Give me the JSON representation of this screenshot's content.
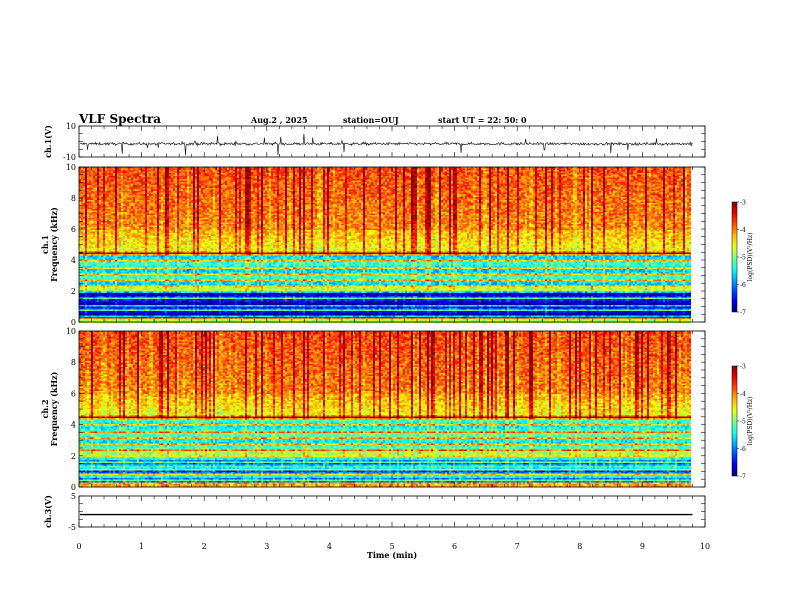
{
  "header": {
    "title": "VLF Spectra",
    "date": "Aug.2 , 2025",
    "station": "station=OUJ",
    "start": "start UT = 22: 50: 0"
  },
  "chart_data": [
    {
      "type": "line",
      "ylabel": "ch.1(V)",
      "ylim": [
        -10,
        10
      ],
      "yticks": [
        "10",
        "-10"
      ],
      "xlim": [
        0,
        10
      ],
      "series": [
        {
          "description": "noisy waveform centered near -1.5 V with sporadic spikes",
          "baseline": -1.5,
          "amplitude": 1.5,
          "spike_max": 8,
          "end_x": 9.8
        }
      ]
    },
    {
      "type": "heatmap",
      "ylabel_top": "ch.1",
      "ylabel": "Frequency (kHz)",
      "ylim": [
        0,
        10
      ],
      "yticks": [
        "0",
        "2",
        "4",
        "6",
        "8",
        "10"
      ],
      "xlim": [
        0,
        10
      ],
      "data_end_x": 9.8,
      "colorbar": {
        "label": "log(PSD)(V²/Hz)",
        "range": [
          -7,
          -3
        ],
        "ticks": [
          "-3",
          "-4",
          "-5",
          "-6",
          "-7"
        ]
      },
      "profile_description": "high power (red/yellow) above ~4.5 kHz, mixed green/cyan 2-4.5 kHz, low (blue) 0.3-2 kHz with harmonic lines"
    },
    {
      "type": "heatmap",
      "ylabel_top": "ch.2",
      "ylabel": "Frequency (kHz)",
      "ylim": [
        0,
        10
      ],
      "yticks": [
        "0",
        "2",
        "4",
        "6",
        "8",
        "10"
      ],
      "xlim": [
        0,
        10
      ],
      "data_end_x": 9.8,
      "colorbar": {
        "label": "log(PSD)(V²/Hz)",
        "range": [
          -7,
          -3
        ],
        "ticks": [
          "-3",
          "-4",
          "-5",
          "-6",
          "-7"
        ]
      },
      "profile_description": "high power (red/yellow) above ~4.5 kHz, green/cyan 2-4.5 kHz, blue-cyan mix below 2 kHz with harmonic lines"
    },
    {
      "type": "line",
      "ylabel": "ch.3(V)",
      "ylim": [
        -5,
        5
      ],
      "yticks": [
        "5",
        "-5"
      ],
      "xlim": [
        0,
        10
      ],
      "xlabel": "Time (min)",
      "xticks": [
        "0",
        "1",
        "2",
        "3",
        "4",
        "5",
        "6",
        "7",
        "8",
        "9",
        "10"
      ],
      "series": [
        {
          "description": "flat line",
          "value": -1,
          "end_x": 9.8
        }
      ]
    }
  ]
}
